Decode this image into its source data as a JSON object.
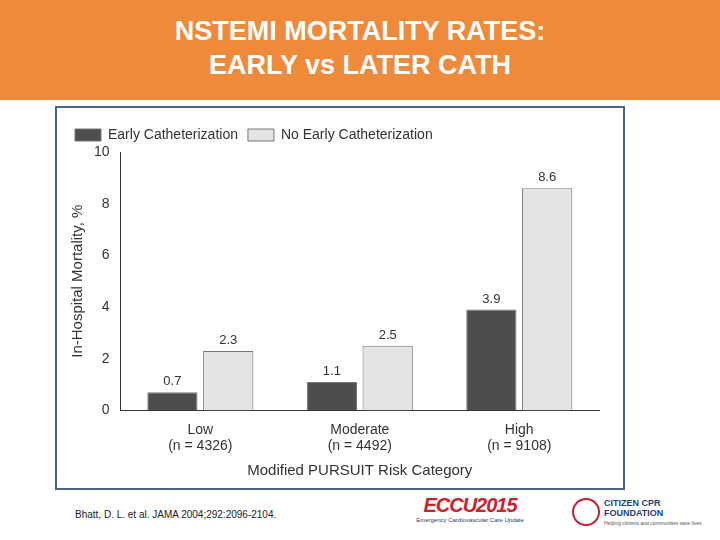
{
  "chart_data": {
    "type": "bar",
    "title": [
      "NSTEMI MORTALITY RATES:",
      "EARLY vs LATER CATH"
    ],
    "x_label": "Modified PURSUIT Risk Category",
    "y_label": "In-Hospital Mortality, %",
    "categories": [
      [
        "Low",
        "(n = 4326)"
      ],
      [
        "Moderate",
        "(n = 4492)"
      ],
      [
        "High",
        "(n = 9108)"
      ]
    ],
    "series": [
      {
        "name": "Early Catheterization",
        "color": "#4d4d4d",
        "values": [
          0.7,
          1.1,
          3.9
        ]
      },
      {
        "name": "No Early Catheterization",
        "color": "#e4e4e4",
        "values": [
          2.3,
          2.5,
          8.6
        ]
      }
    ],
    "ylim": [
      0,
      10
    ],
    "yticks": [
      0,
      2,
      4,
      6,
      8,
      10
    ],
    "grid": false,
    "legend": "upper left",
    "data_labels": true
  },
  "footer": {
    "citation": "Bhatt, D. L. et al. JAMA 2004;292:2096-2104.",
    "logos": [
      {
        "name": "ECCU2015",
        "subtitle": "Emergency Cardiovascular Care Update"
      },
      {
        "name": [
          "CITIZEN CPR",
          "FOUNDATION"
        ],
        "subtitle": "Helping citizens and communities save lives"
      }
    ]
  }
}
